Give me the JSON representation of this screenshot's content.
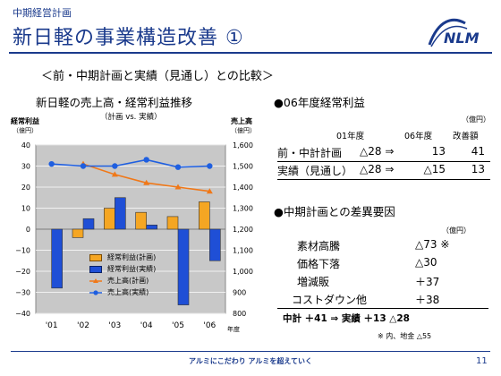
{
  "header": {
    "sub": "中期経営計画",
    "title": "新日軽の事業構造改善 ①",
    "logo": "NLM"
  },
  "subtitle": "＜前・中期計画と実績（見通し）との比較＞",
  "chart": {
    "title": "新日軽の売上高・経常利益推移",
    "subtitle": "（計画 vs. 実績）",
    "left_axis_label": "経常利益",
    "left_axis_unit": "（億円）",
    "right_axis_label": "売上高",
    "right_axis_unit": "（億円）",
    "x_unit": "年度",
    "legend": [
      "経常利益(計画)",
      "経常利益(実績)",
      "売上高(計画)",
      "売上高(実績)"
    ]
  },
  "chart_data": {
    "type": "bar",
    "categories": [
      "'01",
      "'02",
      "'03",
      "'04",
      "'05",
      "'06"
    ],
    "y_left_ticks": [
      "40",
      "30",
      "20",
      "10",
      "0",
      "−10",
      "−20",
      "−30",
      "−40"
    ],
    "y_right_ticks": [
      "1,600",
      "1,500",
      "1,400",
      "1,300",
      "1,200",
      "1,100",
      "1,000",
      "900",
      "800"
    ],
    "ylim_left": [
      -40,
      40
    ],
    "ylim_right": [
      800,
      1600
    ],
    "series": [
      {
        "name": "経常利益(計画)",
        "kind": "bar",
        "axis": "left",
        "color": "#f5a623",
        "values": [
          null,
          -4,
          10,
          8,
          6,
          13
        ]
      },
      {
        "name": "経常利益(実績)",
        "kind": "bar",
        "axis": "left",
        "color": "#1f4fd6",
        "values": [
          -28,
          5,
          15,
          2,
          -36,
          -15
        ]
      },
      {
        "name": "売上高(計画)",
        "kind": "line",
        "axis": "right",
        "color": "#f07818",
        "values": [
          null,
          1510,
          1460,
          1420,
          1400,
          1380
        ]
      },
      {
        "name": "売上高(実績)",
        "kind": "line",
        "axis": "right",
        "color": "#1f5fe0",
        "values": [
          1510,
          1500,
          1500,
          1530,
          1495,
          1500
        ]
      }
    ]
  },
  "profit_table": {
    "heading": "●06年度経常利益",
    "unit": "（億円）",
    "col_headers": [
      "01年度",
      "06年度",
      "改善額"
    ],
    "rows": [
      {
        "label": "前・中計計画",
        "v01": "△28 ⇒",
        "v06": "13",
        "diff": "41"
      },
      {
        "label": "実績（見通し）",
        "v01": "△28 ⇒",
        "v06": "△15",
        "diff": "13"
      }
    ]
  },
  "factor_table": {
    "heading": "●中期計画との差異要因",
    "unit": "（億円）",
    "rows": [
      {
        "label": "素材高騰",
        "value": "△73 ※"
      },
      {
        "label": "価格下落",
        "value": "△30"
      },
      {
        "label": "増減販",
        "value": "＋37"
      },
      {
        "label": "コストダウン他",
        "value": "＋38"
      }
    ],
    "total": "中計 ＋41 ⇒ 実績 ＋13 △28",
    "note": "※ 内、地金 △55"
  },
  "footer": {
    "text": "アルミにこだわり アルミを超えていく",
    "page": "11"
  }
}
